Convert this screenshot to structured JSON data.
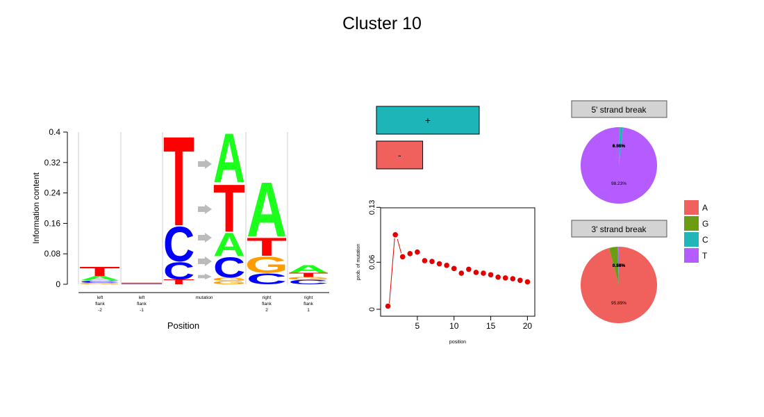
{
  "title": "Cluster 10",
  "colors": {
    "A": "#1cff1c",
    "C": "#0000ff",
    "G": "#ff9d00",
    "T": "#ff0000",
    "pie_A": "#f0605d",
    "pie_G": "#6b9c12",
    "pie_C": "#21b5b8",
    "pie_T": "#b45cff",
    "strand_plus": "#1cb5b8",
    "strand_minus": "#f0605d"
  },
  "chart_data": [
    {
      "type": "bar",
      "subtype": "sequence-logo",
      "xlabel": "Position",
      "ylabel": "Information content",
      "ylim": [
        0,
        0.4
      ],
      "yticks": [
        "0",
        "0.08",
        "0.16",
        "0.24",
        "0.32",
        "0.4"
      ],
      "categories": [
        {
          "label": [
            "left",
            "flank",
            "-2"
          ]
        },
        {
          "label": [
            "left",
            "flank",
            "-1"
          ]
        },
        {
          "label": [
            "mutation"
          ]
        },
        {
          "label": [
            "right",
            "flank",
            "2"
          ]
        },
        {
          "label": [
            "right",
            "flank",
            "1"
          ]
        }
      ],
      "columns": [
        {
          "stack": [
            [
              "G",
              0.004
            ],
            [
              "C",
              0.006
            ],
            [
              "A",
              0.012
            ],
            [
              "T",
              0.025
            ]
          ]
        },
        {
          "stack": [
            [
              "G",
              0.001
            ],
            [
              "C",
              0.001
            ],
            [
              "A",
              0.001
            ],
            [
              "T",
              0.001
            ]
          ]
        },
        {
          "ref": [
            [
              "T",
              0.013
            ],
            [
              "C",
              0.047
            ],
            [
              "C",
              0.095
            ],
            [
              "T",
              0.245
            ]
          ],
          "alt": [
            [
              "G",
              0.009
            ],
            [
              "G",
              0.009
            ],
            [
              "C",
              0.056
            ],
            [
              "A",
              0.064
            ],
            [
              "T",
              0.13
            ],
            [
              "A",
              0.135
            ]
          ]
        },
        {
          "stack": [
            [
              "C",
              0.03
            ],
            [
              "G",
              0.045
            ],
            [
              "T",
              0.05
            ],
            [
              "A",
              0.15
            ]
          ]
        },
        {
          "stack": [
            [
              "C",
              0.012
            ],
            [
              "G",
              0.007
            ],
            [
              "T",
              0.011
            ],
            [
              "A",
              0.021
            ]
          ]
        }
      ]
    },
    {
      "type": "bar",
      "subtype": "strand",
      "categories": [
        "+",
        "-"
      ],
      "values": [
        1.0,
        0.45
      ]
    },
    {
      "type": "scatter",
      "xlabel": "position",
      "ylabel": "prob. of mutation",
      "xticks": [
        "5",
        "10",
        "15",
        "20"
      ],
      "yticks": [
        "0",
        "0.06",
        "0.13"
      ],
      "xlim": [
        0,
        21
      ],
      "ylim": [
        0,
        0.13
      ],
      "x": [
        1,
        2,
        3,
        4,
        5,
        6,
        7,
        8,
        9,
        10,
        11,
        12,
        13,
        14,
        15,
        16,
        17,
        18,
        19,
        20
      ],
      "values": [
        0.004,
        0.095,
        0.067,
        0.071,
        0.073,
        0.062,
        0.061,
        0.058,
        0.056,
        0.052,
        0.046,
        0.051,
        0.047,
        0.046,
        0.044,
        0.041,
        0.04,
        0.039,
        0.037,
        0.035
      ]
    },
    {
      "type": "pie",
      "title": "5' strand break",
      "categories": [
        "A",
        "G",
        "C",
        "T"
      ],
      "values": [
        0.36,
        0.05,
        1.36,
        98.23
      ],
      "labels": [
        "0.36%",
        "0.05%",
        "1.36%",
        "98.23%"
      ]
    },
    {
      "type": "pie",
      "title": "3' strand break",
      "categories": [
        "A",
        "G",
        "C",
        "T"
      ],
      "values": [
        95.89,
        3.57,
        0.3,
        0.24
      ],
      "labels": [
        "95.89%",
        "3.57%",
        "0.30%",
        "0.24%"
      ]
    }
  ],
  "legend": {
    "items": [
      "A",
      "G",
      "C",
      "T"
    ]
  }
}
